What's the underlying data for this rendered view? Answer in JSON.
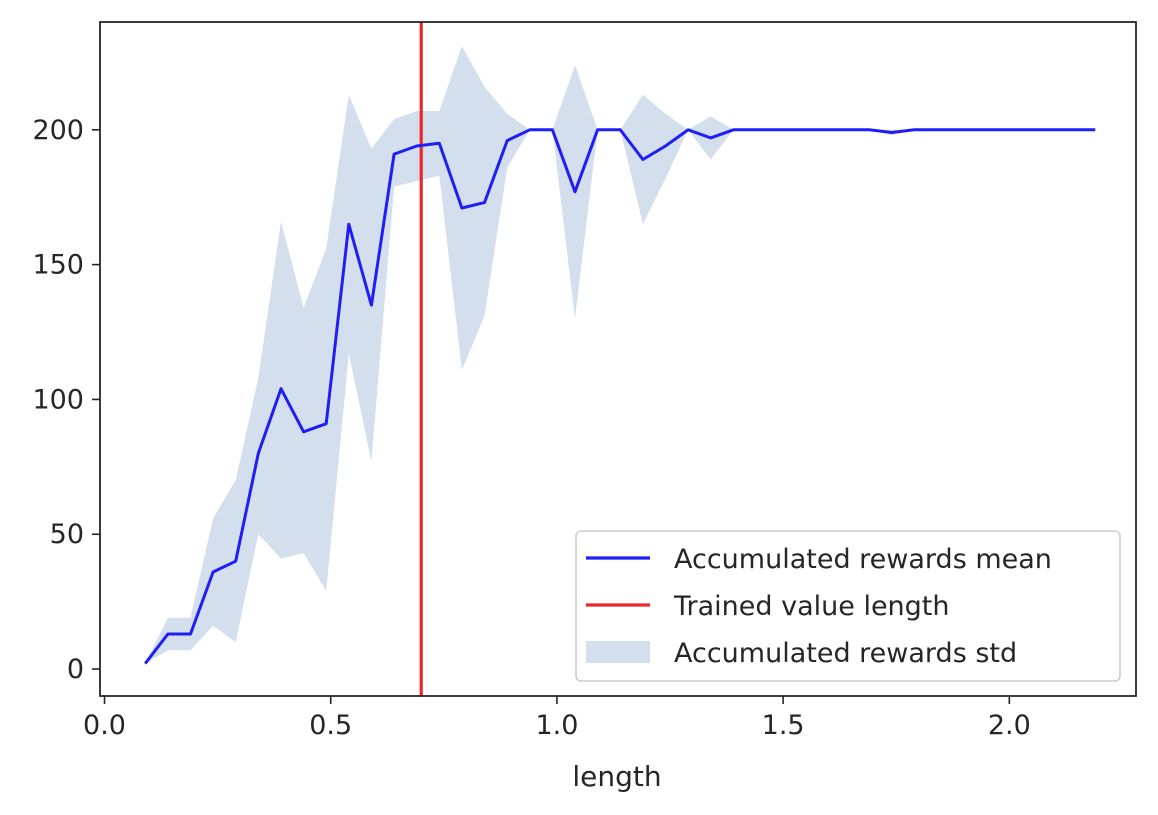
{
  "chart_data": {
    "type": "line",
    "title": "",
    "xlabel": "length",
    "ylabel": "",
    "xlim": [
      -0.01,
      2.28
    ],
    "ylim": [
      -10,
      240
    ],
    "xticks": [
      0.0,
      0.5,
      1.0,
      1.5,
      2.0
    ],
    "xtick_labels": [
      "0.0",
      "0.5",
      "1.0",
      "1.5",
      "2.0"
    ],
    "yticks": [
      0,
      50,
      100,
      150,
      200
    ],
    "ytick_labels": [
      "0",
      "50",
      "100",
      "150",
      "200"
    ],
    "grid": false,
    "legend_position": "lower-right",
    "x": [
      0.09,
      0.14,
      0.19,
      0.24,
      0.29,
      0.34,
      0.39,
      0.44,
      0.49,
      0.54,
      0.59,
      0.64,
      0.69,
      0.74,
      0.79,
      0.84,
      0.89,
      0.94,
      0.99,
      1.04,
      1.09,
      1.14,
      1.19,
      1.24,
      1.29,
      1.34,
      1.39,
      1.44,
      1.49,
      1.54,
      1.59,
      1.64,
      1.69,
      1.74,
      1.79,
      1.84,
      1.89,
      1.94,
      1.99,
      2.04,
      2.09,
      2.14,
      2.19
    ],
    "series": [
      {
        "name": "Accumulated rewards mean",
        "kind": "line",
        "color": "#1f1ff5",
        "values": [
          2,
          13,
          13,
          36,
          40,
          80,
          104,
          88,
          91,
          165,
          135,
          191,
          194,
          195,
          171,
          173,
          196,
          200,
          200,
          177,
          200,
          200,
          189,
          194,
          200,
          197,
          200,
          200,
          200,
          200,
          200,
          200,
          200,
          199,
          200,
          200,
          200,
          200,
          200,
          200,
          200,
          200,
          200
        ]
      },
      {
        "name": "Accumulated rewards std",
        "kind": "band",
        "color": "#b0c4de",
        "upper": [
          2,
          19,
          19,
          56,
          70,
          108,
          166,
          134,
          156,
          213,
          193,
          204,
          207,
          207,
          231,
          216,
          206,
          200,
          200,
          224,
          200,
          200,
          213,
          206,
          200,
          205,
          200,
          200,
          200,
          200,
          200,
          200,
          200,
          200,
          200,
          200,
          200,
          200,
          200,
          200,
          200,
          200,
          200
        ],
        "lower": [
          2,
          7,
          7,
          16,
          10,
          50,
          41,
          43,
          29,
          117,
          77,
          179,
          181,
          183,
          111,
          131,
          186,
          200,
          200,
          130,
          200,
          200,
          165,
          182,
          200,
          189,
          200,
          200,
          200,
          200,
          200,
          200,
          200,
          198,
          200,
          200,
          200,
          200,
          200,
          200,
          200,
          200,
          200
        ]
      }
    ],
    "vlines": [
      {
        "name": "Trained value length",
        "x": 0.7,
        "color": "#e8282a"
      }
    ],
    "legend": [
      {
        "label": "Accumulated rewards mean",
        "kind": "line",
        "color": "#1f1ff5"
      },
      {
        "label": "Trained value length",
        "kind": "line",
        "color": "#e8282a"
      },
      {
        "label": "Accumulated rewards std",
        "kind": "patch",
        "color": "#b0c4de"
      }
    ]
  }
}
